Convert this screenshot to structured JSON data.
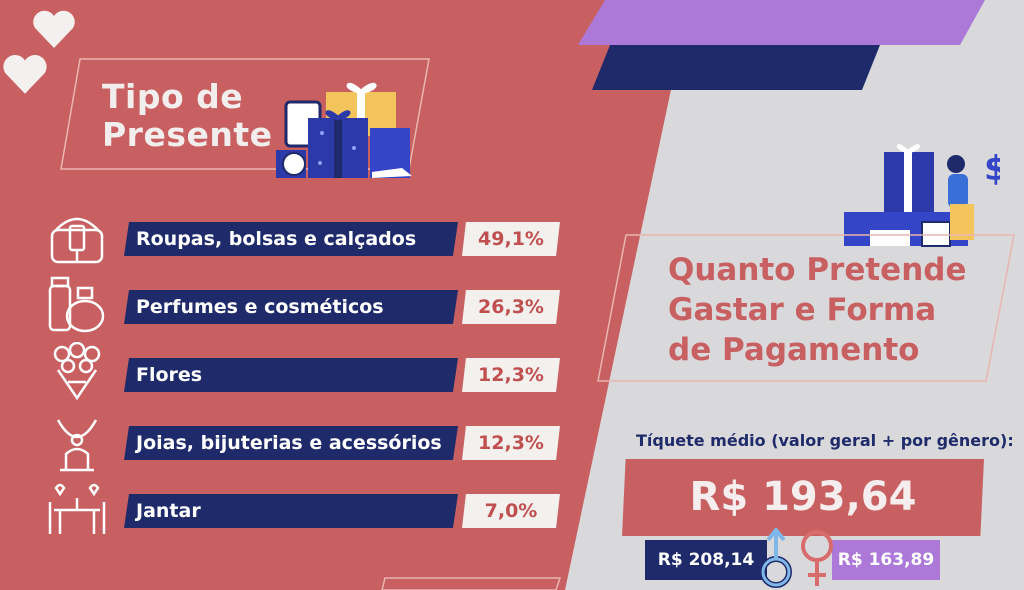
{
  "colors": {
    "coral": "#c85f60",
    "navy": "#1f2a6b",
    "purple": "#ad79d9",
    "light": "#f3f0ee",
    "gray": "#d9d9db"
  },
  "left": {
    "title_line1": "Tipo de",
    "title_line2": "Presente",
    "rows": [
      {
        "label": "Roupas, bolsas e calçados",
        "value": "49,1%",
        "icon": "handbag-icon"
      },
      {
        "label": "Perfumes e cosméticos",
        "value": "26,3%",
        "icon": "perfume-bottle-icon"
      },
      {
        "label": "Flores",
        "value": "12,3%",
        "icon": "flower-bouquet-icon"
      },
      {
        "label": "Joias, bijuterias e acessórios",
        "value": "12,3%",
        "icon": "necklace-icon"
      },
      {
        "label": "Jantar",
        "value": "7,0%",
        "icon": "dinner-table-icon"
      }
    ]
  },
  "right": {
    "title_line1": "Quanto Pretende",
    "title_line2": "Gastar e Forma",
    "title_line3": "de Pagamento",
    "ticket_label": "Tíquete médio (valor geral + por gênero):",
    "ticket_total": "R$ 193,64",
    "male_value": "R$ 208,14",
    "female_value": "R$ 163,89",
    "dollar_symbol": "$"
  }
}
